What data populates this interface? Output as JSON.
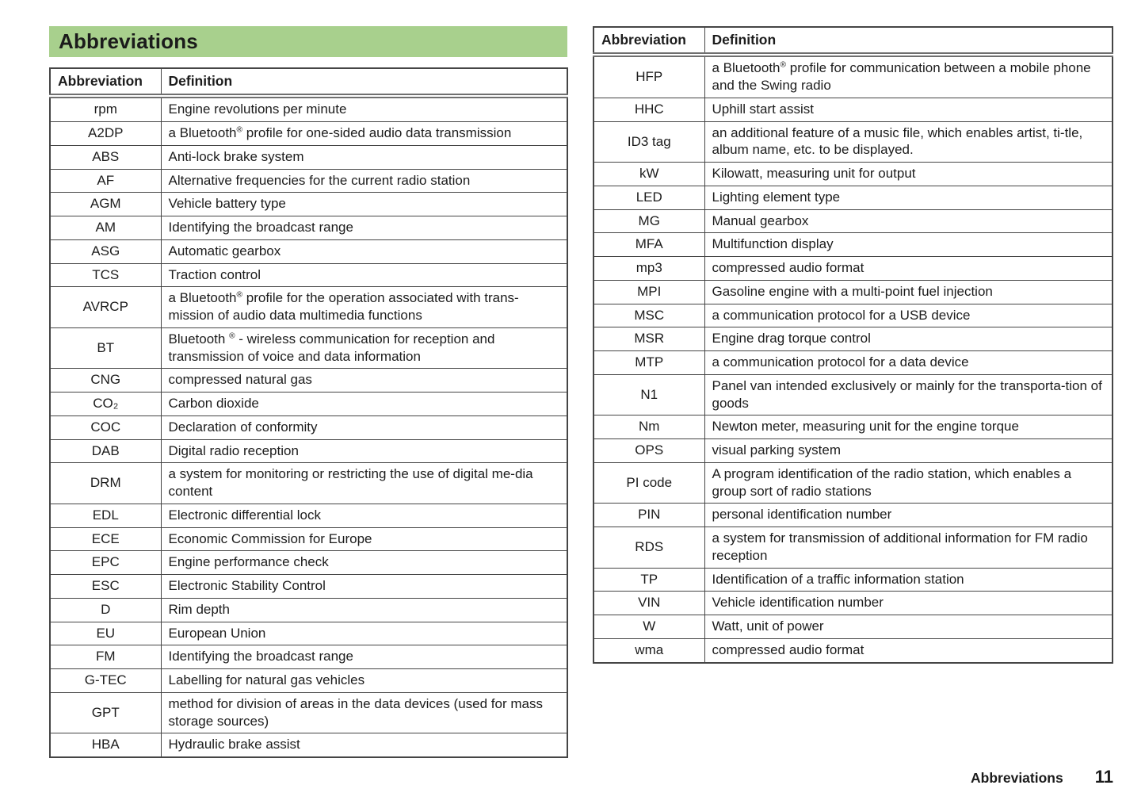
{
  "page": {
    "title": "Abbreviations",
    "accent_green": "#a8d08d",
    "border_color": "#454545",
    "footer": {
      "section": "Abbreviations",
      "page_number": "11"
    }
  },
  "table_headers": {
    "abbreviation": "Abbreviation",
    "definition": "Definition"
  },
  "left_table": {
    "rows": [
      {
        "abbr": "rpm",
        "def": "Engine revolutions per minute"
      },
      {
        "abbr": "A2DP",
        "def": "a Bluetooth® profile for one-sided audio data transmission"
      },
      {
        "abbr": "ABS",
        "def": "Anti-lock brake system"
      },
      {
        "abbr": "AF",
        "def": "Alternative frequencies for the current radio station"
      },
      {
        "abbr": "AGM",
        "def": "Vehicle battery type"
      },
      {
        "abbr": "AM",
        "def": "Identifying the broadcast range"
      },
      {
        "abbr": "ASG",
        "def": "Automatic gearbox"
      },
      {
        "abbr": "TCS",
        "def": "Traction control"
      },
      {
        "abbr": "AVRCP",
        "def": "a Bluetooth® profile for the operation associated with trans-mission of audio data multimedia functions"
      },
      {
        "abbr": "BT",
        "def": "Bluetooth ® - wireless communication for reception and transmission of voice and data information"
      },
      {
        "abbr": "CNG",
        "def": "compressed natural gas"
      },
      {
        "abbr": "CO₂",
        "def": "Carbon dioxide"
      },
      {
        "abbr": "COC",
        "def": "Declaration of conformity"
      },
      {
        "abbr": "DAB",
        "def": "Digital radio reception"
      },
      {
        "abbr": "DRM",
        "def": "a system for monitoring or restricting the use of digital me-dia content"
      },
      {
        "abbr": "EDL",
        "def": "Electronic differential lock"
      },
      {
        "abbr": "ECE",
        "def": "Economic Commission for Europe"
      },
      {
        "abbr": "EPC",
        "def": "Engine performance check"
      },
      {
        "abbr": "ESC",
        "def": "Electronic Stability Control"
      },
      {
        "abbr": "D",
        "def": "Rim depth"
      },
      {
        "abbr": "EU",
        "def": "European Union"
      },
      {
        "abbr": "FM",
        "def": "Identifying the broadcast range"
      },
      {
        "abbr": "G-TEC",
        "def": "Labelling for natural gas vehicles"
      },
      {
        "abbr": "GPT",
        "def": "method for division of areas in the data devices (used for mass storage sources)"
      },
      {
        "abbr": "HBA",
        "def": "Hydraulic brake assist"
      }
    ]
  },
  "right_table": {
    "rows": [
      {
        "abbr": "HFP",
        "def": "a Bluetooth® profile for communication between a mobile phone and the Swing radio"
      },
      {
        "abbr": "HHC",
        "def": "Uphill start assist"
      },
      {
        "abbr": "ID3 tag",
        "def": "an additional feature of a music file, which enables artist, ti-tle, album name, etc. to be displayed."
      },
      {
        "abbr": "kW",
        "def": "Kilowatt, measuring unit for output"
      },
      {
        "abbr": "LED",
        "def": "Lighting element type"
      },
      {
        "abbr": "MG",
        "def": "Manual gearbox"
      },
      {
        "abbr": "MFA",
        "def": "Multifunction display"
      },
      {
        "abbr": "mp3",
        "def": "compressed audio format"
      },
      {
        "abbr": "MPI",
        "def": "Gasoline engine with a multi-point fuel injection"
      },
      {
        "abbr": "MSC",
        "def": "a communication protocol for a USB device"
      },
      {
        "abbr": "MSR",
        "def": "Engine drag torque control"
      },
      {
        "abbr": "MTP",
        "def": "a communication protocol for a data device"
      },
      {
        "abbr": "N1",
        "def": "Panel van intended exclusively or mainly for the transporta-tion of goods"
      },
      {
        "abbr": "Nm",
        "def": "Newton meter, measuring unit for the engine torque"
      },
      {
        "abbr": "OPS",
        "def": "visual parking system"
      },
      {
        "abbr": "PI code",
        "def": "A program identification of the radio station, which enables a group sort of radio stations"
      },
      {
        "abbr": "PIN",
        "def": "personal identification number"
      },
      {
        "abbr": "RDS",
        "def": "a system for transmission of additional information for FM radio reception"
      },
      {
        "abbr": "TP",
        "def": "Identification of a traffic information station"
      },
      {
        "abbr": "VIN",
        "def": "Vehicle identification number"
      },
      {
        "abbr": "W",
        "def": "Watt, unit of power"
      },
      {
        "abbr": "wma",
        "def": "compressed audio format"
      }
    ]
  }
}
